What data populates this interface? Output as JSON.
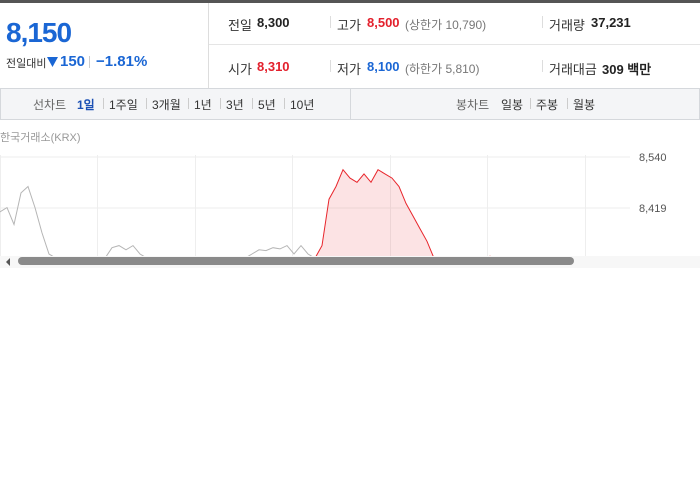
{
  "quote": {
    "price": "8,150",
    "change_label": "전일대비",
    "change": "150",
    "change_rate": "−1.81%"
  },
  "info": {
    "prev_label": "전일",
    "prev": "8,300",
    "high_label": "고가",
    "high": "8,500",
    "upper_limit": "(상한가 10,790)",
    "volume_label": "거래량",
    "volume": "37,231",
    "open_label": "시가",
    "open": "8,310",
    "low_label": "저가",
    "low": "8,100",
    "lower_limit": "(하한가 5,810)",
    "amount_label": "거래대금",
    "amount": "309 백만"
  },
  "tabs": {
    "line_label": "선차트",
    "line_periods": [
      "1일",
      "1주일",
      "3개월",
      "1년",
      "3년",
      "5년",
      "10년"
    ],
    "candle_label": "봉차트",
    "candle_periods": [
      "일봉",
      "주봉",
      "월봉"
    ]
  },
  "chart_data": {
    "type": "line",
    "source": "한국거래소(KRX)",
    "ylim": [
      8300,
      8560
    ],
    "yticks": [
      {
        "value": 8540,
        "label": "8,540"
      },
      {
        "value": 8419,
        "label": "8,419"
      }
    ],
    "grid": true,
    "series": [
      {
        "color": "#b5b5b5",
        "values": [
          8410,
          8420,
          8380,
          8455,
          8470,
          8420,
          8360,
          8310,
          8300,
          8300,
          8300,
          8300,
          8300,
          8300,
          8300,
          8300,
          8325,
          8330,
          8320,
          8330,
          8310,
          8300,
          8300,
          8300,
          8300,
          8300,
          8300,
          8300,
          8300,
          8300,
          8300,
          8300,
          8300,
          8300,
          8300,
          8300,
          8310,
          8320,
          8318,
          8325,
          8322,
          8330,
          8310,
          8330,
          8310,
          8300,
          null,
          null,
          null,
          null,
          null,
          null,
          null,
          null,
          null,
          null,
          null,
          null,
          null,
          null,
          null,
          null,
          null,
          null,
          null,
          null,
          null,
          null,
          null,
          null,
          null
        ]
      },
      {
        "color": "#e8262c",
        "values": [
          null,
          null,
          null,
          null,
          null,
          null,
          null,
          null,
          null,
          null,
          null,
          null,
          null,
          null,
          null,
          null,
          null,
          null,
          null,
          null,
          null,
          null,
          null,
          null,
          null,
          null,
          null,
          null,
          null,
          null,
          null,
          null,
          null,
          null,
          null,
          null,
          null,
          null,
          null,
          null,
          null,
          null,
          null,
          null,
          null,
          8300,
          8330,
          8440,
          8470,
          8510,
          8490,
          8480,
          8500,
          8480,
          8510,
          8500,
          8490,
          8470,
          8430,
          8400,
          8370,
          8340,
          8300,
          null,
          null,
          null,
          null,
          null,
          null,
          null,
          8305
        ]
      }
    ]
  }
}
